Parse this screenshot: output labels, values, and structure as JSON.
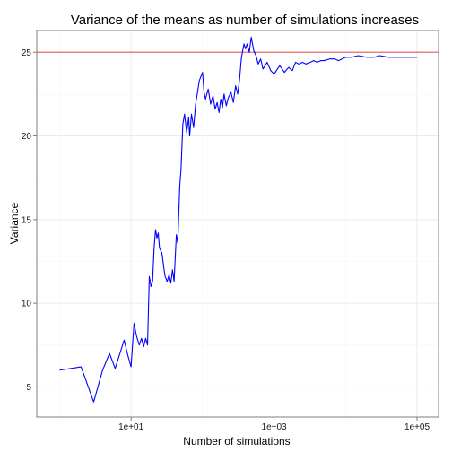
{
  "chart_data": {
    "type": "line",
    "title": "Variance of the means as number of simulations increases",
    "xlabel": "Number of simulations",
    "ylabel": "Variance",
    "x_scale": "log10",
    "xlim": [
      0.48,
      200000
    ],
    "ylim": [
      3.2,
      26.3
    ],
    "x_ticks": [
      10,
      1000,
      100000
    ],
    "x_tick_labels": [
      "1e+01",
      "1e+03",
      "1e+05"
    ],
    "y_ticks": [
      5,
      10,
      15,
      20,
      25
    ],
    "y_tick_labels": [
      "5",
      "10",
      "15",
      "20",
      "25"
    ],
    "grid": true,
    "reference_line": {
      "y": 25,
      "color": "#f08080"
    },
    "series": [
      {
        "color": "#0000ff",
        "x": [
          1,
          2,
          3,
          4,
          5,
          6,
          8,
          9,
          10,
          11,
          12,
          13,
          14,
          15,
          16,
          17,
          18,
          19,
          20,
          21,
          22,
          23,
          24,
          25,
          27,
          29,
          30,
          32,
          34,
          36,
          38,
          40,
          43,
          45,
          48,
          50,
          53,
          56,
          60,
          64,
          66,
          70,
          75,
          80,
          85,
          90,
          100,
          105,
          110,
          120,
          130,
          140,
          150,
          160,
          170,
          180,
          190,
          200,
          215,
          230,
          250,
          270,
          290,
          310,
          330,
          350,
          380,
          400,
          420,
          450,
          480,
          520,
          560,
          600,
          650,
          700,
          800,
          900,
          1000,
          1200,
          1400,
          1600,
          1800,
          2000,
          2200,
          2500,
          2800,
          3200,
          3600,
          4000,
          4500,
          5000,
          6000,
          7000,
          8000,
          10000,
          12000,
          15000,
          20000,
          25000,
          30000,
          40000,
          50000,
          70000,
          100000
        ],
        "y": [
          6.0,
          6.2,
          4.1,
          6.0,
          7.0,
          6.1,
          7.8,
          6.9,
          6.2,
          8.8,
          8.0,
          7.5,
          7.9,
          7.4,
          7.9,
          7.5,
          11.6,
          11.0,
          11.3,
          13.3,
          14.4,
          13.9,
          14.2,
          13.3,
          13.0,
          12.0,
          11.6,
          11.3,
          11.7,
          11.2,
          12.0,
          11.3,
          14.1,
          13.6,
          17.0,
          18.0,
          20.7,
          21.3,
          20.2,
          21.1,
          20.0,
          21.3,
          20.5,
          21.9,
          22.6,
          23.3,
          23.8,
          22.6,
          22.2,
          22.8,
          21.9,
          22.4,
          21.6,
          22.0,
          21.4,
          22.2,
          21.7,
          22.5,
          21.8,
          22.3,
          22.6,
          22.0,
          23.0,
          22.5,
          23.4,
          24.7,
          25.5,
          25.2,
          25.5,
          25.0,
          25.9,
          25.1,
          24.8,
          24.3,
          24.6,
          24.0,
          24.4,
          23.9,
          23.7,
          24.2,
          23.8,
          24.1,
          23.9,
          24.4,
          24.3,
          24.4,
          24.3,
          24.4,
          24.5,
          24.4,
          24.5,
          24.5,
          24.6,
          24.6,
          24.5,
          24.7,
          24.7,
          24.8,
          24.7,
          24.7,
          24.8,
          24.7,
          24.7,
          24.7,
          24.7
        ]
      }
    ]
  }
}
